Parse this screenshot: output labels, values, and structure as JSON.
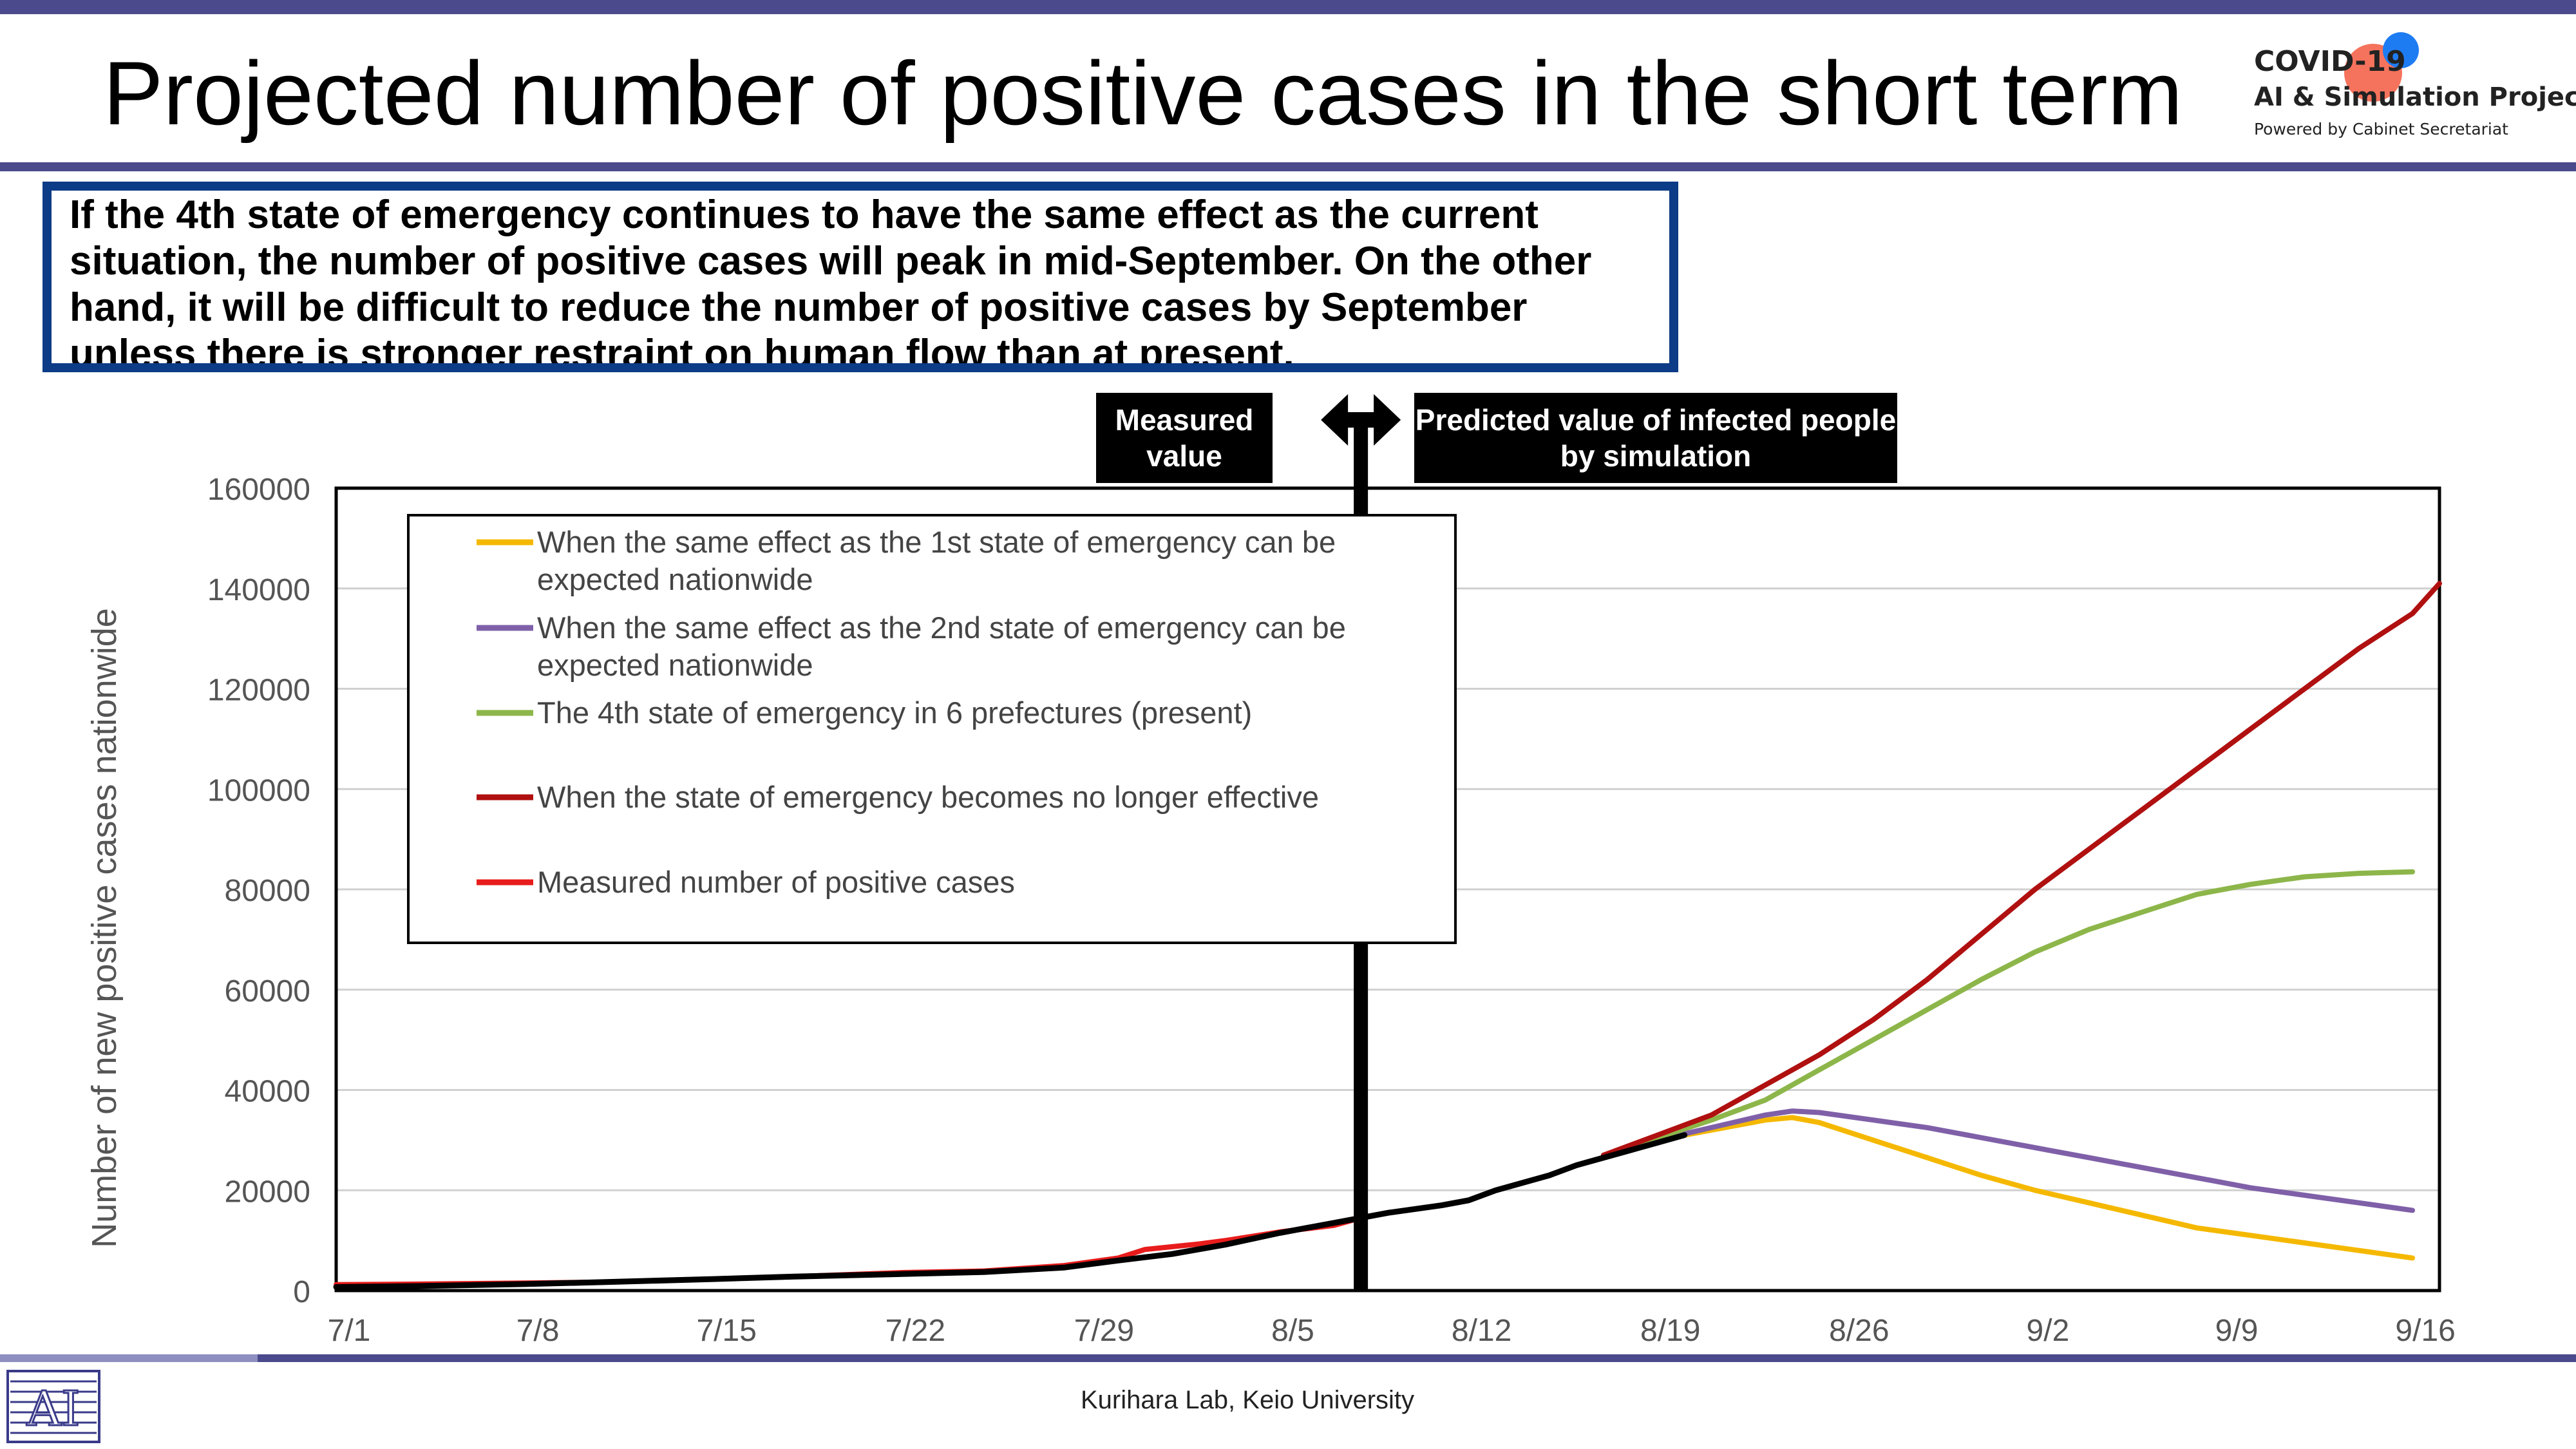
{
  "slide": {
    "title": "Projected number of positive cases in the short term",
    "summary": "If the 4th state of emergency continues to have the same effect as the current situation, the number of positive cases will peak in mid-September. On the other hand, it will be difficult to reduce the number of positive cases by September unless there is stronger restraint on human flow than at present.",
    "tag_measured": "Measured value",
    "tag_predicted": "Predicted value of infected people by simulation",
    "footer": "Kurihara Lab, Keio University"
  },
  "logo": {
    "line1": "COVID-19",
    "line2": "AI & Simulation Project",
    "line3": "Powered by Cabinet Secretariat",
    "colors": {
      "orange": "#f4644a",
      "blue": "#1e7cf2"
    }
  },
  "chart_data": {
    "type": "line",
    "title": "",
    "xlabel": "",
    "ylabel": "Number of new positive cases nationwide",
    "x_range_days": [
      0,
      78
    ],
    "ylim": [
      0,
      160000
    ],
    "yticks": [
      0,
      20000,
      40000,
      60000,
      80000,
      100000,
      120000,
      140000,
      160000
    ],
    "xticks": [
      {
        "day": 0,
        "label": "7/1"
      },
      {
        "day": 7,
        "label": "7/8"
      },
      {
        "day": 14,
        "label": "7/15"
      },
      {
        "day": 21,
        "label": "7/22"
      },
      {
        "day": 28,
        "label": "7/29"
      },
      {
        "day": 35,
        "label": "8/5"
      },
      {
        "day": 42,
        "label": "8/12"
      },
      {
        "day": 49,
        "label": "8/19"
      },
      {
        "day": 56,
        "label": "8/26"
      },
      {
        "day": 63,
        "label": "9/2"
      },
      {
        "day": 70,
        "label": "9/9"
      },
      {
        "day": 77,
        "label": "9/16"
      }
    ],
    "grid": true,
    "legend_position": "top-left",
    "divider_day": 38,
    "series": [
      {
        "name": "When the same effect as the 1st state of emergency can be expected nationwide",
        "color": "#f5b800",
        "points": [
          [
            47,
            27000
          ],
          [
            49,
            30000
          ],
          [
            51,
            32000
          ],
          [
            53,
            34000
          ],
          [
            54,
            34500
          ],
          [
            55,
            33500
          ],
          [
            57,
            30000
          ],
          [
            59,
            26500
          ],
          [
            61,
            23000
          ],
          [
            63,
            20000
          ],
          [
            65,
            17500
          ],
          [
            67,
            15000
          ],
          [
            69,
            12500
          ],
          [
            71,
            11000
          ],
          [
            73,
            9500
          ],
          [
            75,
            8000
          ],
          [
            77,
            6500
          ]
        ]
      },
      {
        "name": "When the same effect as the 2nd state of emergency can be expected nationwide",
        "color": "#7f60a8",
        "points": [
          [
            47,
            27000
          ],
          [
            49,
            30000
          ],
          [
            51,
            32500
          ],
          [
            53,
            35000
          ],
          [
            54,
            35800
          ],
          [
            55,
            35500
          ],
          [
            57,
            34000
          ],
          [
            59,
            32500
          ],
          [
            61,
            30500
          ],
          [
            63,
            28500
          ],
          [
            65,
            26500
          ],
          [
            67,
            24500
          ],
          [
            69,
            22500
          ],
          [
            71,
            20500
          ],
          [
            73,
            19000
          ],
          [
            75,
            17500
          ],
          [
            77,
            16000
          ]
        ]
      },
      {
        "name": "The 4th state of emergency in 6 prefectures (present)",
        "color": "#8db64a",
        "points": [
          [
            47,
            27000
          ],
          [
            49,
            30500
          ],
          [
            51,
            34000
          ],
          [
            53,
            38000
          ],
          [
            55,
            44000
          ],
          [
            57,
            50000
          ],
          [
            59,
            56000
          ],
          [
            61,
            62000
          ],
          [
            63,
            67500
          ],
          [
            65,
            72000
          ],
          [
            67,
            75500
          ],
          [
            69,
            79000
          ],
          [
            71,
            81000
          ],
          [
            73,
            82500
          ],
          [
            75,
            83200
          ],
          [
            77,
            83500
          ]
        ]
      },
      {
        "name": "When the state of emergency becomes no longer effective",
        "color": "#b01010",
        "points": [
          [
            47,
            27000
          ],
          [
            49,
            31000
          ],
          [
            51,
            35000
          ],
          [
            53,
            41000
          ],
          [
            55,
            47000
          ],
          [
            57,
            54000
          ],
          [
            59,
            62000
          ],
          [
            61,
            71000
          ],
          [
            63,
            80000
          ],
          [
            65,
            88000
          ],
          [
            67,
            96000
          ],
          [
            69,
            104000
          ],
          [
            71,
            112000
          ],
          [
            73,
            120000
          ],
          [
            75,
            128000
          ],
          [
            77,
            135000
          ],
          [
            78,
            141000
          ]
        ]
      },
      {
        "name": "Measured number of positive cases",
        "color": "#e81c1c",
        "points": [
          [
            0,
            1200
          ],
          [
            3,
            1300
          ],
          [
            7,
            1500
          ],
          [
            10,
            1700
          ],
          [
            14,
            2300
          ],
          [
            17,
            2800
          ],
          [
            21,
            3600
          ],
          [
            24,
            3900
          ],
          [
            27,
            5000
          ],
          [
            29,
            6500
          ],
          [
            30,
            8200
          ],
          [
            32,
            9300
          ],
          [
            33,
            10000
          ],
          [
            35,
            11700
          ],
          [
            37,
            13000
          ],
          [
            38,
            14500
          ]
        ]
      },
      {
        "name": "",
        "color": "#000000",
        "points": [
          [
            0,
            700
          ],
          [
            3,
            900
          ],
          [
            7,
            1300
          ],
          [
            10,
            1700
          ],
          [
            14,
            2300
          ],
          [
            17,
            2800
          ],
          [
            21,
            3300
          ],
          [
            24,
            3700
          ],
          [
            27,
            4600
          ],
          [
            29,
            6000
          ],
          [
            31,
            7300
          ],
          [
            33,
            9200
          ],
          [
            35,
            11500
          ],
          [
            37,
            13500
          ],
          [
            39,
            15500
          ],
          [
            41,
            17000
          ],
          [
            42,
            18000
          ],
          [
            43,
            20000
          ],
          [
            45,
            23000
          ],
          [
            46,
            25000
          ],
          [
            48,
            28000
          ],
          [
            50,
            31000
          ]
        ]
      }
    ]
  }
}
